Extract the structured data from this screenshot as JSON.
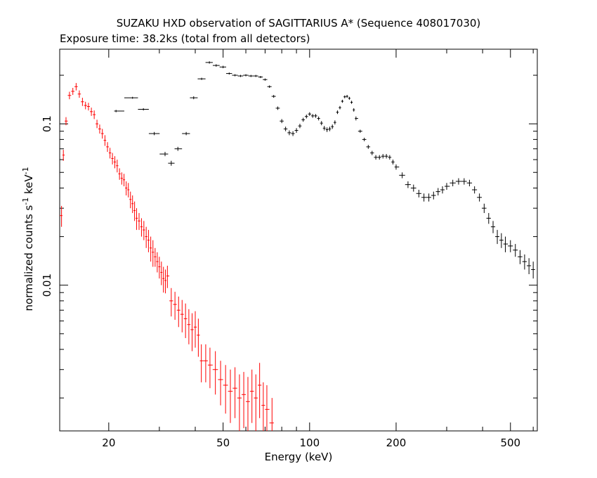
{
  "chart_data": {
    "type": "scatter",
    "title": "SUZAKU HXD observation of SAGITTARIUS A* (Sequence 408017030)",
    "subtitle": "Exposure time: 38.2ks (total from all detectors)",
    "xlabel": "Energy (keV)",
    "ylabel": "normalized counts s^-1 keV^-1",
    "x_scale": "log",
    "y_scale": "log",
    "xlim": [
      13.5,
      620
    ],
    "ylim": [
      0.00125,
      0.29
    ],
    "x_ticks": [
      20,
      50,
      100,
      200,
      500
    ],
    "x_tick_labels": [
      "20",
      "50",
      "100",
      "200",
      "500"
    ],
    "y_ticks": [
      0.01,
      0.1
    ],
    "y_tick_labels": [
      "0.01",
      "0.1"
    ],
    "grid": false,
    "legend": "none",
    "series": [
      {
        "color": "#ff0000",
        "error_bars": true,
        "points": [
          [
            13.7,
            0.027,
            0.004
          ],
          [
            13.9,
            0.064,
            0.005
          ],
          [
            14.2,
            0.104,
            0.006
          ],
          [
            14.6,
            0.15,
            0.008
          ],
          [
            15.0,
            0.159,
            0.008
          ],
          [
            15.4,
            0.17,
            0.009
          ],
          [
            15.8,
            0.153,
            0.008
          ],
          [
            16.2,
            0.137,
            0.008
          ],
          [
            16.6,
            0.13,
            0.007
          ],
          [
            17.0,
            0.128,
            0.007
          ],
          [
            17.4,
            0.119,
            0.007
          ],
          [
            17.8,
            0.114,
            0.007
          ],
          [
            18.2,
            0.1,
            0.006
          ],
          [
            18.6,
            0.093,
            0.006
          ],
          [
            19.0,
            0.087,
            0.006
          ],
          [
            19.4,
            0.079,
            0.006
          ],
          [
            19.8,
            0.072,
            0.005
          ],
          [
            20.2,
            0.066,
            0.005
          ],
          [
            20.6,
            0.061,
            0.005
          ],
          [
            21.0,
            0.058,
            0.005
          ],
          [
            21.4,
            0.055,
            0.005
          ],
          [
            21.8,
            0.049,
            0.004
          ],
          [
            22.2,
            0.046,
            0.004
          ],
          [
            22.6,
            0.045,
            0.004
          ],
          [
            23.0,
            0.04,
            0.004
          ],
          [
            23.4,
            0.039,
            0.004
          ],
          [
            23.8,
            0.034,
            0.004
          ],
          [
            24.2,
            0.032,
            0.004
          ],
          [
            24.6,
            0.029,
            0.004
          ],
          [
            25.0,
            0.026,
            0.004
          ],
          [
            25.5,
            0.025,
            0.003
          ],
          [
            26.0,
            0.023,
            0.003
          ],
          [
            26.5,
            0.022,
            0.003
          ],
          [
            27.0,
            0.02,
            0.003
          ],
          [
            27.5,
            0.019,
            0.003
          ],
          [
            28.0,
            0.017,
            0.003
          ],
          [
            28.5,
            0.016,
            0.003
          ],
          [
            29.0,
            0.015,
            0.002
          ],
          [
            29.5,
            0.014,
            0.002
          ],
          [
            30.0,
            0.013,
            0.002
          ],
          [
            30.5,
            0.012,
            0.002
          ],
          [
            31.0,
            0.011,
            0.002
          ],
          [
            31.5,
            0.0107,
            0.0018
          ],
          [
            32.0,
            0.0114,
            0.0018
          ],
          [
            33.0,
            0.008,
            0.0016
          ],
          [
            34.0,
            0.0076,
            0.0015
          ],
          [
            35.0,
            0.007,
            0.0015
          ],
          [
            36.0,
            0.0066,
            0.0015
          ],
          [
            37.0,
            0.0062,
            0.0015
          ],
          [
            38.0,
            0.0057,
            0.0014
          ],
          [
            39.0,
            0.0053,
            0.0014
          ],
          [
            40.0,
            0.0055,
            0.0014
          ],
          [
            41.0,
            0.0049,
            0.0013
          ],
          [
            42.0,
            0.0034,
            0.0009
          ],
          [
            43.5,
            0.0034,
            0.0009
          ],
          [
            45.0,
            0.0032,
            0.0009
          ],
          [
            47.0,
            0.003,
            0.0009
          ],
          [
            49.0,
            0.0026,
            0.0008
          ],
          [
            51.0,
            0.0024,
            0.0008
          ],
          [
            53.0,
            0.0022,
            0.0008
          ],
          [
            55.0,
            0.0023,
            0.0008
          ],
          [
            57.0,
            0.002,
            0.0008
          ],
          [
            59.0,
            0.0021,
            0.0008
          ],
          [
            61.0,
            0.0019,
            0.0008
          ],
          [
            63.0,
            0.0022,
            0.0008
          ],
          [
            65.0,
            0.002,
            0.0008
          ],
          [
            67.0,
            0.0024,
            0.0009
          ],
          [
            69.0,
            0.0018,
            0.0007
          ],
          [
            71.0,
            0.0017,
            0.0007
          ],
          [
            74.0,
            0.0014,
            0.0006
          ]
        ]
      },
      {
        "color": "#000000",
        "error_bars": true,
        "points": [
          [
            21.2,
            0.12,
            0.002
          ],
          [
            24.2,
            0.145,
            0.002
          ],
          [
            26.4,
            0.123,
            0.002
          ],
          [
            28.8,
            0.087,
            0.002
          ],
          [
            31.4,
            0.065,
            0.002
          ],
          [
            33.0,
            0.057,
            0.002
          ],
          [
            34.8,
            0.07,
            0.002
          ],
          [
            37.2,
            0.087,
            0.002
          ],
          [
            39.5,
            0.145,
            0.003
          ],
          [
            42.1,
            0.19,
            0.003
          ],
          [
            44.8,
            0.24,
            0.004
          ],
          [
            47.3,
            0.23,
            0.004
          ],
          [
            50.0,
            0.225,
            0.004
          ],
          [
            52.5,
            0.205,
            0.003
          ],
          [
            55.0,
            0.2,
            0.003
          ],
          [
            57.5,
            0.198,
            0.003
          ],
          [
            60.0,
            0.2,
            0.003
          ],
          [
            62.5,
            0.198,
            0.003
          ],
          [
            65.0,
            0.198,
            0.003
          ],
          [
            67.5,
            0.195,
            0.003
          ],
          [
            70.0,
            0.188,
            0.003
          ],
          [
            72.5,
            0.17,
            0.003
          ],
          [
            75.0,
            0.148,
            0.003
          ],
          [
            77.5,
            0.125,
            0.003
          ],
          [
            80.0,
            0.104,
            0.003
          ],
          [
            82.5,
            0.093,
            0.003
          ],
          [
            85.0,
            0.088,
            0.003
          ],
          [
            87.5,
            0.087,
            0.003
          ],
          [
            90.0,
            0.091,
            0.003
          ],
          [
            92.5,
            0.097,
            0.003
          ],
          [
            95.0,
            0.106,
            0.003
          ],
          [
            97.5,
            0.111,
            0.003
          ],
          [
            100.0,
            0.115,
            0.003
          ],
          [
            102.5,
            0.112,
            0.003
          ],
          [
            105.0,
            0.112,
            0.003
          ],
          [
            107.5,
            0.108,
            0.003
          ],
          [
            110.0,
            0.101,
            0.003
          ],
          [
            112.5,
            0.094,
            0.003
          ],
          [
            115.0,
            0.092,
            0.003
          ],
          [
            117.5,
            0.093,
            0.003
          ],
          [
            120.0,
            0.096,
            0.003
          ],
          [
            122.5,
            0.102,
            0.003
          ],
          [
            125.0,
            0.118,
            0.003
          ],
          [
            127.5,
            0.126,
            0.003
          ],
          [
            130.0,
            0.138,
            0.003
          ],
          [
            132.5,
            0.147,
            0.003
          ],
          [
            135.0,
            0.148,
            0.003
          ],
          [
            137.5,
            0.144,
            0.003
          ],
          [
            140.0,
            0.136,
            0.003
          ],
          [
            142.5,
            0.122,
            0.003
          ],
          [
            145.0,
            0.108,
            0.003
          ],
          [
            150.0,
            0.09,
            0.002
          ],
          [
            155.0,
            0.08,
            0.002
          ],
          [
            160.0,
            0.072,
            0.002
          ],
          [
            165.0,
            0.066,
            0.002
          ],
          [
            170.0,
            0.062,
            0.002
          ],
          [
            175.0,
            0.062,
            0.002
          ],
          [
            180.0,
            0.063,
            0.002
          ],
          [
            185.0,
            0.063,
            0.002
          ],
          [
            190.0,
            0.062,
            0.002
          ],
          [
            195.0,
            0.058,
            0.002
          ],
          [
            200.0,
            0.054,
            0.002
          ],
          [
            210.0,
            0.048,
            0.002
          ],
          [
            220.0,
            0.042,
            0.002
          ],
          [
            230.0,
            0.04,
            0.002
          ],
          [
            240.0,
            0.037,
            0.002
          ],
          [
            250.0,
            0.035,
            0.002
          ],
          [
            260.0,
            0.035,
            0.002
          ],
          [
            270.0,
            0.036,
            0.002
          ],
          [
            280.0,
            0.038,
            0.002
          ],
          [
            290.0,
            0.039,
            0.002
          ],
          [
            300.0,
            0.041,
            0.002
          ],
          [
            315.0,
            0.043,
            0.002
          ],
          [
            330.0,
            0.044,
            0.002
          ],
          [
            345.0,
            0.044,
            0.002
          ],
          [
            360.0,
            0.043,
            0.002
          ],
          [
            375.0,
            0.039,
            0.002
          ],
          [
            390.0,
            0.035,
            0.002
          ],
          [
            405.0,
            0.03,
            0.002
          ],
          [
            420.0,
            0.026,
            0.002
          ],
          [
            435.0,
            0.023,
            0.002
          ],
          [
            450.0,
            0.02,
            0.002
          ],
          [
            465.0,
            0.019,
            0.002
          ],
          [
            480.0,
            0.018,
            0.002
          ],
          [
            500.0,
            0.0175,
            0.0015
          ],
          [
            520.0,
            0.0165,
            0.0015
          ],
          [
            540.0,
            0.015,
            0.0015
          ],
          [
            560.0,
            0.014,
            0.0015
          ],
          [
            580.0,
            0.0132,
            0.0015
          ],
          [
            600.0,
            0.0125,
            0.0015
          ]
        ]
      }
    ]
  }
}
